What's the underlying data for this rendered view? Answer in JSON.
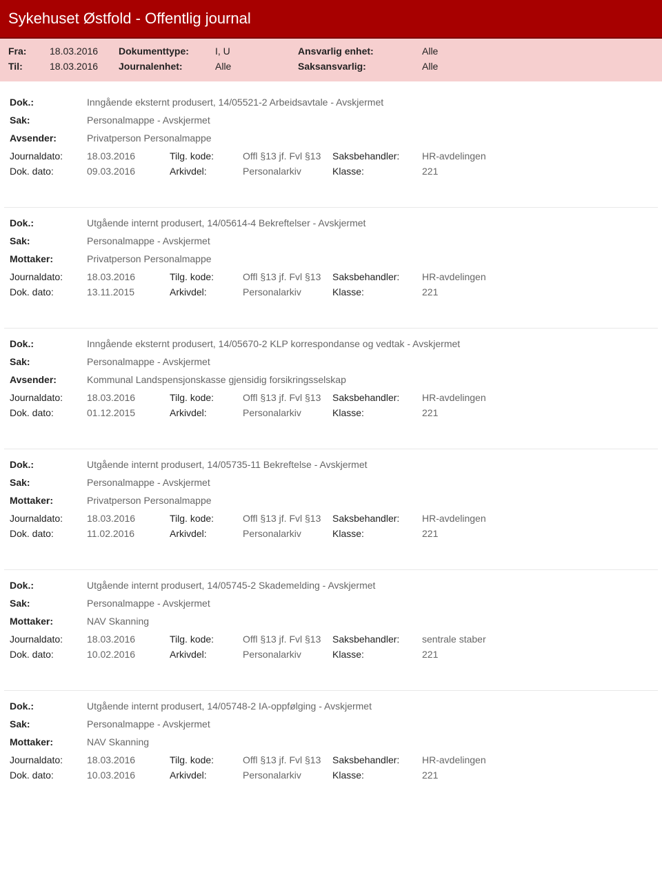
{
  "header": {
    "title": "Sykehuset Østfold - Offentlig journal"
  },
  "meta": {
    "fra_label": "Fra:",
    "fra_value": "18.03.2016",
    "til_label": "Til:",
    "til_value": "18.03.2016",
    "doktype_label": "Dokumenttype:",
    "doktype_value": "I, U",
    "journalenhet_label": "Journalenhet:",
    "journalenhet_value": "Alle",
    "ansvarlig_label": "Ansvarlig enhet:",
    "ansvarlig_value": "Alle",
    "saksansvarlig_label": "Saksansvarlig:",
    "saksansvarlig_value": "Alle"
  },
  "labels": {
    "dok": "Dok.:",
    "sak": "Sak:",
    "avsender": "Avsender:",
    "mottaker": "Mottaker:",
    "journaldato": "Journaldato:",
    "dokdato": "Dok. dato:",
    "tilgkode": "Tilg. kode:",
    "arkivdel": "Arkivdel:",
    "saksbehandler": "Saksbehandler:",
    "klasse": "Klasse:"
  },
  "entries": [
    {
      "dok": "Inngående eksternt produsert, 14/05521-2 Arbeidsavtale - Avskjermet",
      "sak": "Personalmappe - Avskjermet",
      "party_label": "Avsender:",
      "party_value": "Privatperson Personalmappe",
      "journaldato": "18.03.2016",
      "tilgkode": "Offl §13 jf. Fvl §13",
      "saksbehandler": "HR-avdelingen",
      "dokdato": "09.03.2016",
      "arkivdel": "Personalarkiv",
      "klasse": "221"
    },
    {
      "dok": "Utgående internt produsert, 14/05614-4 Bekreftelser - Avskjermet",
      "sak": "Personalmappe - Avskjermet",
      "party_label": "Mottaker:",
      "party_value": "Privatperson Personalmappe",
      "journaldato": "18.03.2016",
      "tilgkode": "Offl §13 jf. Fvl §13",
      "saksbehandler": "HR-avdelingen",
      "dokdato": "13.11.2015",
      "arkivdel": "Personalarkiv",
      "klasse": "221"
    },
    {
      "dok": "Inngående eksternt produsert, 14/05670-2 KLP korrespondanse og vedtak - Avskjermet",
      "sak": "Personalmappe - Avskjermet",
      "party_label": "Avsender:",
      "party_value": "Kommunal Landspensjonskasse gjensidig forsikringsselskap",
      "journaldato": "18.03.2016",
      "tilgkode": "Offl §13 jf. Fvl §13",
      "saksbehandler": "HR-avdelingen",
      "dokdato": "01.12.2015",
      "arkivdel": "Personalarkiv",
      "klasse": "221"
    },
    {
      "dok": "Utgående internt produsert, 14/05735-11 Bekreftelse - Avskjermet",
      "sak": "Personalmappe - Avskjermet",
      "party_label": "Mottaker:",
      "party_value": "Privatperson Personalmappe",
      "journaldato": "18.03.2016",
      "tilgkode": "Offl §13 jf. Fvl §13",
      "saksbehandler": "HR-avdelingen",
      "dokdato": "11.02.2016",
      "arkivdel": "Personalarkiv",
      "klasse": "221"
    },
    {
      "dok": "Utgående internt produsert, 14/05745-2 Skademelding - Avskjermet",
      "sak": "Personalmappe - Avskjermet",
      "party_label": "Mottaker:",
      "party_value": "NAV Skanning",
      "journaldato": "18.03.2016",
      "tilgkode": "Offl §13 jf. Fvl §13",
      "saksbehandler": "sentrale staber",
      "dokdato": "10.02.2016",
      "arkivdel": "Personalarkiv",
      "klasse": "221"
    },
    {
      "dok": "Utgående internt produsert, 14/05748-2 IA-oppfølging - Avskjermet",
      "sak": "Personalmappe - Avskjermet",
      "party_label": "Mottaker:",
      "party_value": "NAV Skanning",
      "journaldato": "18.03.2016",
      "tilgkode": "Offl §13 jf. Fvl §13",
      "saksbehandler": "HR-avdelingen",
      "dokdato": "10.03.2016",
      "arkivdel": "Personalarkiv",
      "klasse": "221"
    }
  ]
}
